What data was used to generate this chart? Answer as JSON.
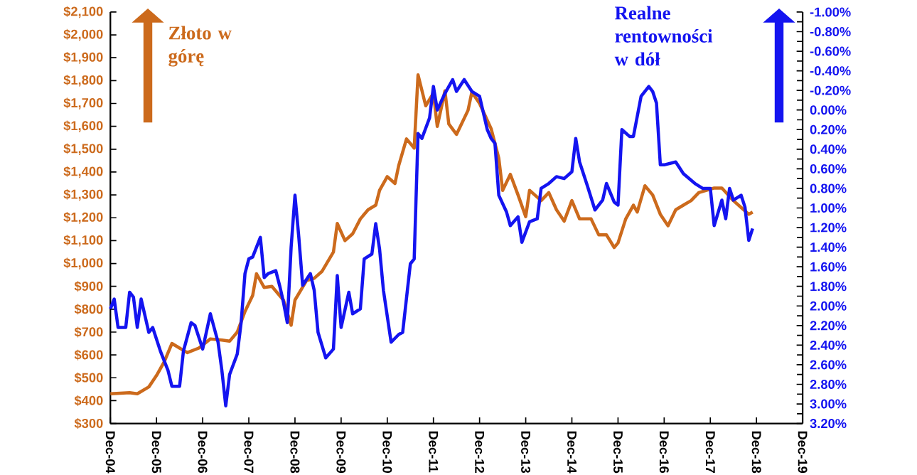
{
  "chart_data": {
    "type": "line",
    "annotations": [
      "Złoto w górę",
      "Realne rentowności w dół"
    ],
    "series": [
      {
        "color": "#cc6a1c",
        "axis": "y",
        "x": [
          "2004-12",
          "2005-05",
          "2005-07",
          "2005-10",
          "2005-12",
          "2006-02",
          "2006-04",
          "2006-06",
          "2006-08",
          "2006-11",
          "2007-02",
          "2007-05",
          "2007-07",
          "2007-09",
          "2007-11",
          "2008-01",
          "2008-02",
          "2008-04",
          "2008-06",
          "2008-09",
          "2008-11",
          "2008-12",
          "2009-03",
          "2009-05",
          "2009-07",
          "2009-10",
          "2009-11",
          "2010-01",
          "2010-03",
          "2010-05",
          "2010-07",
          "2010-09",
          "2010-10",
          "2010-12",
          "2011-02",
          "2011-03",
          "2011-05",
          "2011-07",
          "2011-08",
          "2011-10",
          "2011-12",
          "2012-01",
          "2012-03",
          "2012-04",
          "2012-06",
          "2012-07",
          "2012-09",
          "2012-10",
          "2012-12",
          "2013-03",
          "2013-05",
          "2013-06",
          "2013-08",
          "2013-10",
          "2013-12",
          "2014-01",
          "2014-04",
          "2014-06",
          "2014-08",
          "2014-10",
          "2014-12",
          "2015-02",
          "2015-05",
          "2015-07",
          "2015-09",
          "2015-11",
          "2015-12",
          "2016-02",
          "2016-04",
          "2016-05",
          "2016-07",
          "2016-09",
          "2016-11",
          "2017-01",
          "2017-03",
          "2017-05",
          "2017-07",
          "2017-09",
          "2017-11",
          "2018-01",
          "2018-03",
          "2018-06",
          "2018-08",
          "2018-10",
          "2018-11"
        ],
        "values": [
          430,
          435,
          430,
          460,
          510,
          570,
          650,
          630,
          610,
          630,
          670,
          665,
          660,
          700,
          790,
          860,
          955,
          895,
          900,
          840,
          730,
          840,
          925,
          935,
          965,
          1050,
          1175,
          1100,
          1130,
          1195,
          1235,
          1255,
          1320,
          1380,
          1350,
          1430,
          1545,
          1505,
          1825,
          1690,
          1745,
          1600,
          1755,
          1610,
          1565,
          1600,
          1670,
          1750,
          1700,
          1590,
          1460,
          1320,
          1390,
          1300,
          1205,
          1320,
          1275,
          1310,
          1235,
          1185,
          1275,
          1195,
          1195,
          1125,
          1125,
          1070,
          1090,
          1195,
          1255,
          1225,
          1340,
          1300,
          1215,
          1165,
          1235,
          1255,
          1275,
          1310,
          1320,
          1330,
          1330,
          1275,
          1245,
          1215,
          1225
        ]
      },
      {
        "color": "#1414f0",
        "axis": "y2",
        "x": [
          "2004-12",
          "2005-01",
          "2005-02",
          "2005-04",
          "2005-05",
          "2005-06",
          "2005-07",
          "2005-08",
          "2005-10",
          "2005-11",
          "2006-01",
          "2006-03",
          "2006-04",
          "2006-06",
          "2006-07",
          "2006-09",
          "2006-10",
          "2006-12",
          "2007-02",
          "2007-04",
          "2007-05",
          "2007-06",
          "2007-07",
          "2007-09",
          "2007-10",
          "2007-11",
          "2007-12",
          "2008-01",
          "2008-03",
          "2008-04",
          "2008-05",
          "2008-07",
          "2008-08",
          "2008-09",
          "2008-10",
          "2008-11",
          "2008-12",
          "2009-01",
          "2009-02",
          "2009-04",
          "2009-05",
          "2009-06",
          "2009-08",
          "2009-10",
          "2009-11",
          "2009-12",
          "2010-02",
          "2010-03",
          "2010-05",
          "2010-06",
          "2010-08",
          "2010-09",
          "2010-10",
          "2010-11",
          "2011-01",
          "2011-03",
          "2011-04",
          "2011-06",
          "2011-07",
          "2011-08",
          "2011-09",
          "2011-11",
          "2011-12",
          "2012-01",
          "2012-03",
          "2012-05",
          "2012-06",
          "2012-08",
          "2012-10",
          "2012-12",
          "2013-02",
          "2013-03",
          "2013-04",
          "2013-05",
          "2013-07",
          "2013-08",
          "2013-10",
          "2013-11",
          "2014-01",
          "2014-03",
          "2014-04",
          "2014-06",
          "2014-08",
          "2014-10",
          "2014-12",
          "2015-01",
          "2015-02",
          "2015-04",
          "2015-06",
          "2015-08",
          "2015-09",
          "2015-11",
          "2015-12",
          "2016-01",
          "2016-03",
          "2016-04",
          "2016-06",
          "2016-08",
          "2016-09",
          "2016-10",
          "2016-11",
          "2016-12",
          "2017-03",
          "2017-05",
          "2017-08",
          "2017-10",
          "2017-12",
          "2018-01",
          "2018-03",
          "2018-04",
          "2018-05",
          "2018-06",
          "2018-08",
          "2018-09",
          "2018-10",
          "2018-11"
        ],
        "values": [
          2.03,
          1.93,
          2.22,
          2.22,
          1.86,
          1.91,
          2.22,
          1.93,
          2.27,
          2.22,
          2.46,
          2.66,
          2.82,
          2.82,
          2.46,
          2.17,
          2.2,
          2.44,
          2.08,
          2.37,
          2.66,
          3.02,
          2.7,
          2.49,
          2.17,
          1.67,
          1.52,
          1.5,
          1.3,
          1.71,
          1.67,
          1.64,
          1.79,
          1.96,
          2.17,
          1.4,
          0.87,
          1.3,
          1.79,
          1.67,
          1.84,
          2.27,
          2.53,
          2.44,
          1.69,
          2.22,
          1.86,
          2.08,
          2.03,
          1.52,
          1.47,
          1.16,
          1.42,
          1.84,
          2.37,
          2.29,
          2.27,
          1.57,
          1.52,
          0.24,
          0.29,
          0.08,
          -0.24,
          0.0,
          -0.17,
          -0.31,
          -0.19,
          -0.31,
          -0.19,
          -0.14,
          0.2,
          0.29,
          0.34,
          0.87,
          1.04,
          1.18,
          1.09,
          1.35,
          1.14,
          1.11,
          0.8,
          0.75,
          0.68,
          0.7,
          0.63,
          0.29,
          0.53,
          0.77,
          1.02,
          0.92,
          0.75,
          0.94,
          0.97,
          0.2,
          0.27,
          0.27,
          -0.14,
          -0.24,
          -0.19,
          -0.07,
          0.56,
          0.56,
          0.53,
          0.65,
          0.75,
          0.8,
          0.8,
          1.18,
          0.92,
          1.11,
          0.8,
          0.92,
          0.87,
          0.99,
          1.33,
          1.21
        ]
      }
    ],
    "xlim": [
      "2004-12",
      "2019-12"
    ],
    "xticks": [
      {
        "value": "2004-12",
        "label": "Dec-04"
      },
      {
        "value": "2005-12",
        "label": "Dec-05"
      },
      {
        "value": "2006-12",
        "label": "Dec-06"
      },
      {
        "value": "2007-12",
        "label": "Dec-07"
      },
      {
        "value": "2008-12",
        "label": "Dec-08"
      },
      {
        "value": "2009-12",
        "label": "Dec-09"
      },
      {
        "value": "2010-12",
        "label": "Dec-10"
      },
      {
        "value": "2011-12",
        "label": "Dec-11"
      },
      {
        "value": "2012-12",
        "label": "Dec-12"
      },
      {
        "value": "2013-12",
        "label": "Dec-13"
      },
      {
        "value": "2014-12",
        "label": "Dec-14"
      },
      {
        "value": "2015-12",
        "label": "Dec-15"
      },
      {
        "value": "2016-12",
        "label": "Dec-16"
      },
      {
        "value": "2017-12",
        "label": "Dec-17"
      },
      {
        "value": "2018-12",
        "label": "Dec-18"
      },
      {
        "value": "2019-12",
        "label": "Dec-19"
      }
    ],
    "ylim": [
      300,
      2100
    ],
    "yticks": [
      {
        "value": 300,
        "label": "$300"
      },
      {
        "value": 400,
        "label": "$400"
      },
      {
        "value": 500,
        "label": "$500"
      },
      {
        "value": 600,
        "label": "$600"
      },
      {
        "value": 700,
        "label": "$700"
      },
      {
        "value": 800,
        "label": "$800"
      },
      {
        "value": 900,
        "label": "$900"
      },
      {
        "value": 1000,
        "label": "$1,000"
      },
      {
        "value": 1100,
        "label": "$1,100"
      },
      {
        "value": 1200,
        "label": "$1,200"
      },
      {
        "value": 1300,
        "label": "$1,300"
      },
      {
        "value": 1400,
        "label": "$1,400"
      },
      {
        "value": 1500,
        "label": "$1,500"
      },
      {
        "value": 1600,
        "label": "$1,600"
      },
      {
        "value": 1700,
        "label": "$1,700"
      },
      {
        "value": 1800,
        "label": "$1,800"
      },
      {
        "value": 1900,
        "label": "$1,900"
      },
      {
        "value": 2000,
        "label": "$2,000"
      },
      {
        "value": 2100,
        "label": "$2,100"
      }
    ],
    "y2lim": [
      3.2,
      -1.0
    ],
    "y2ticks": [
      {
        "value": -1.0,
        "label": "-1.00%"
      },
      {
        "value": -0.8,
        "label": "-0.80%"
      },
      {
        "value": -0.6,
        "label": "-0.60%"
      },
      {
        "value": -0.4,
        "label": "-0.40%"
      },
      {
        "value": -0.2,
        "label": "-0.20%"
      },
      {
        "value": 0.0,
        "label": "0.00%"
      },
      {
        "value": 0.2,
        "label": "0.20%"
      },
      {
        "value": 0.4,
        "label": "0.40%"
      },
      {
        "value": 0.6,
        "label": "0.60%"
      },
      {
        "value": 0.8,
        "label": "0.80%"
      },
      {
        "value": 1.0,
        "label": "1.00%"
      },
      {
        "value": 1.2,
        "label": "1.20%"
      },
      {
        "value": 1.4,
        "label": "1.40%"
      },
      {
        "value": 1.6,
        "label": "1.60%"
      },
      {
        "value": 1.8,
        "label": "1.80%"
      },
      {
        "value": 2.0,
        "label": "2.00%"
      },
      {
        "value": 2.2,
        "label": "2.20%"
      },
      {
        "value": 2.4,
        "label": "2.40%"
      },
      {
        "value": 2.6,
        "label": "2.60%"
      },
      {
        "value": 2.8,
        "label": "2.80%"
      },
      {
        "value": 3.0,
        "label": "3.00%"
      },
      {
        "value": 3.2,
        "label": "3.20%"
      }
    ],
    "grid": false,
    "legend": false,
    "marker": "none",
    "line_style": "solid"
  }
}
